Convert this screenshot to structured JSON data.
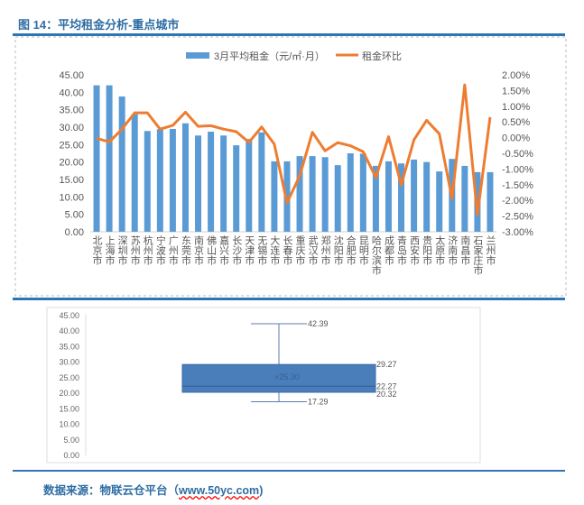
{
  "title": "图 14：平均租金分析-重点城市",
  "source": {
    "prefix": "数据来源：物联云仓平台（",
    "link": "www.50yc.com",
    "suffix": ")"
  },
  "chart_data": [
    {
      "type": "bar+line",
      "legend": [
        "3月平均租金（元/㎡·月）",
        "租金环比"
      ],
      "legend_position": "top",
      "left_axis": {
        "ylim": [
          0,
          45
        ],
        "ticks": [
          "0.00",
          "5.00",
          "10.00",
          "15.00",
          "20.00",
          "25.00",
          "30.00",
          "35.00",
          "40.00",
          "45.00"
        ]
      },
      "right_axis": {
        "ylim": [
          -3,
          2
        ],
        "ticks": [
          "-3.00%",
          "-2.50%",
          "-2.00%",
          "-1.50%",
          "-1.00%",
          "-0.50%",
          "0.00%",
          "0.50%",
          "1.00%",
          "1.50%",
          "2.00%"
        ]
      },
      "categories": [
        "北京市",
        "上海市",
        "深圳市",
        "苏州市",
        "杭州市",
        "宁波市",
        "广州市",
        "东莞市",
        "南京市",
        "佛山市",
        "嘉兴市",
        "长沙市",
        "天津市",
        "无锡市",
        "大连市",
        "长春市",
        "重庆市",
        "武汉市",
        "郑州市",
        "沈阳市",
        "合肥市",
        "昆明市",
        "哈尔滨市",
        "成都市",
        "青岛市",
        "西安市",
        "贵阳市",
        "太原市",
        "济南市",
        "南昌市",
        "石家庄市",
        "兰州市"
      ],
      "series": [
        {
          "name": "3月平均租金（元/㎡·月）",
          "color": "#5b9bd5",
          "values": [
            42.0,
            42.0,
            38.8,
            33.7,
            28.9,
            29.4,
            29.5,
            31.1,
            27.6,
            28.7,
            27.6,
            24.8,
            26.6,
            28.5,
            20.2,
            20.2,
            21.7,
            21.7,
            21.4,
            19.1,
            22.5,
            22.4,
            18.9,
            20.2,
            19.6,
            20.7,
            20.0,
            17.3,
            20.9,
            18.9,
            17.1,
            17.1
          ]
        },
        {
          "name": "租金环比",
          "color": "#ed7d31",
          "values": [
            -0.02,
            -0.14,
            0.27,
            0.79,
            0.79,
            0.27,
            0.39,
            0.81,
            0.36,
            0.38,
            0.27,
            0.19,
            -0.15,
            0.34,
            -0.21,
            -2.08,
            -1.22,
            0.17,
            -0.42,
            -0.16,
            -0.26,
            -0.45,
            -1.27,
            0.03,
            -1.51,
            -0.07,
            0.55,
            0.12,
            -1.94,
            1.68,
            -2.46,
            0.65
          ]
        }
      ]
    },
    {
      "type": "boxplot",
      "ylim": [
        0,
        45
      ],
      "ticks": [
        "0.00",
        "5.00",
        "10.00",
        "15.00",
        "20.00",
        "25.00",
        "30.00",
        "35.00",
        "40.00",
        "45.00"
      ],
      "min": 17.29,
      "q1": 20.32,
      "median": 22.27,
      "mean": 25.3,
      "q3": 29.27,
      "max": 42.39,
      "labels": {
        "min": "17.29",
        "q1": "20.32",
        "median": "22.27",
        "mean": "×25.30",
        "q3": "29.27",
        "max": "42.39"
      },
      "color": "#4a7ebb"
    }
  ]
}
